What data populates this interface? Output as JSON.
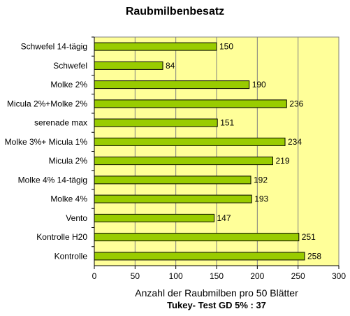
{
  "chart_data": {
    "type": "bar",
    "orientation": "horizontal",
    "title": "Raubmilbenbesatz",
    "xlabel": "Anzahl der Raubmilben pro 50  Blätter",
    "note": "Tukey- Test GD 5% :    37",
    "categories": [
      "Schwefel 14-tägig",
      "Schwefel",
      "Molke 2%",
      "Micula 2%+Molke 2%",
      "serenade max",
      "Molke 3%+ Micula 1%",
      "Micula 2%",
      "Molke 4% 14-tägig",
      "Molke 4%",
      "Vento",
      "Kontrolle H20",
      "Kontrolle"
    ],
    "values": [
      150,
      84,
      190,
      236,
      151,
      234,
      219,
      192,
      193,
      147,
      251,
      258
    ],
    "xlim": [
      0,
      300
    ],
    "xticks": [
      0,
      50,
      100,
      150,
      200,
      250,
      300
    ],
    "grid": true,
    "colors": {
      "bar": "#99cc00",
      "bar_border": "#000000",
      "plot_background": "#ffff99",
      "grid": "#808080"
    }
  }
}
